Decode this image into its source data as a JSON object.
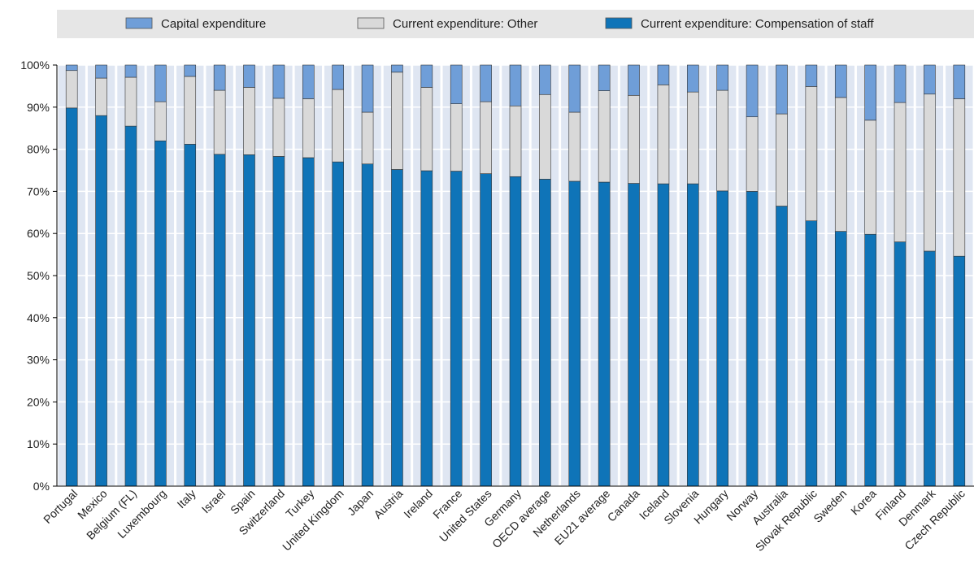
{
  "chart_data": {
    "type": "bar",
    "stacked": true,
    "categories": [
      "Portugal",
      "Mexico",
      "Belgium (FL)",
      "Luxembourg",
      "Italy",
      "Israel",
      "Spain",
      "Switzerland",
      "Turkey",
      "United Kingdom",
      "Japan",
      "Austria",
      "Ireland",
      "France",
      "United States",
      "Germany",
      "OECD average",
      "Netherlands",
      "EU21 average",
      "Canada",
      "Iceland",
      "Slovenia",
      "Hungary",
      "Norway",
      "Australia",
      "Slovak Republic",
      "Sweden",
      "Korea",
      "Finland",
      "Denmark",
      "Czech Republic"
    ],
    "series": [
      {
        "name": "Current expenditure: Compensation of staff",
        "color": "#0f74b8",
        "values": [
          89.8,
          88.0,
          85.5,
          82.0,
          81.2,
          78.8,
          78.7,
          78.3,
          78.0,
          77.0,
          76.5,
          75.2,
          74.9,
          74.8,
          74.2,
          73.5,
          72.9,
          72.4,
          72.2,
          71.9,
          71.8,
          71.8,
          70.1,
          70.0,
          66.5,
          63.0,
          60.5,
          59.8,
          58.0,
          55.8,
          54.6
        ]
      },
      {
        "name": "Current expenditure: Other",
        "color": "#d9d9d9",
        "values": [
          8.9,
          8.9,
          11.6,
          9.3,
          16.1,
          15.2,
          16.0,
          13.8,
          14.0,
          17.2,
          12.3,
          23.1,
          19.8,
          16.0,
          17.1,
          16.8,
          20.1,
          16.4,
          21.7,
          20.9,
          23.5,
          21.8,
          23.9,
          17.7,
          21.9,
          31.9,
          31.8,
          27.1,
          33.1,
          37.3,
          37.4
        ]
      },
      {
        "name": "Capital expenditure",
        "color": "#6f9ed8",
        "values": [
          1.3,
          3.1,
          2.9,
          8.7,
          2.7,
          6.0,
          5.3,
          7.9,
          8.0,
          5.8,
          11.2,
          1.7,
          5.3,
          9.2,
          8.7,
          9.7,
          7.0,
          11.2,
          6.1,
          7.2,
          4.7,
          6.4,
          6.0,
          12.3,
          11.6,
          5.1,
          7.7,
          13.1,
          8.9,
          6.9,
          8.0
        ]
      }
    ],
    "legend_order": [
      "Capital expenditure",
      "Current expenditure: Other",
      "Current expenditure: Compensation of staff"
    ],
    "yticks": [
      "0%",
      "10%",
      "20%",
      "30%",
      "40%",
      "50%",
      "60%",
      "70%",
      "80%",
      "90%",
      "100%"
    ],
    "ylim": [
      0,
      100
    ],
    "title": "",
    "xlabel": "",
    "ylabel": "",
    "legend_position": "top",
    "grid": true,
    "plot_background": "#dfe6f2"
  }
}
